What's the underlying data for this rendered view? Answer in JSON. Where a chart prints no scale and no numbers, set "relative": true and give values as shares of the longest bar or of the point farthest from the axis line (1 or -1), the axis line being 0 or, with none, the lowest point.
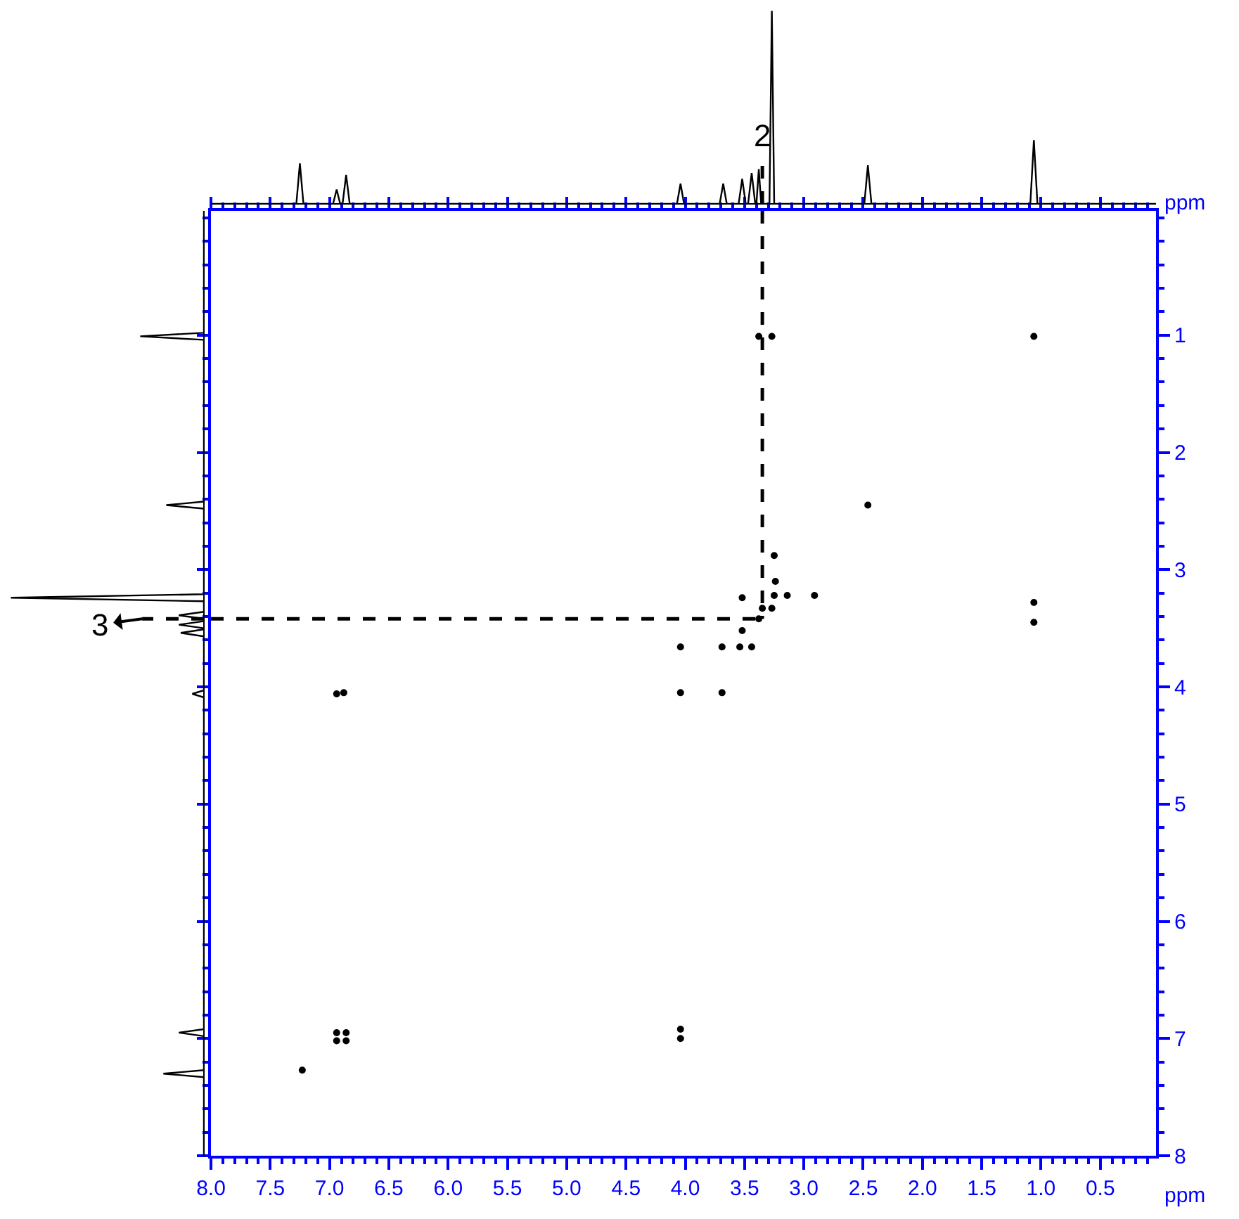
{
  "chart_data": [
    {
      "type": "line",
      "relative": true,
      "tick_labels": false,
      "xlim": [
        8.0,
        0.03
      ],
      "line_style": "solid",
      "marker": "none",
      "series": [
        {
          "color": "#000000",
          "x": [
            8.0,
            7.28,
            7.25,
            7.22,
            6.97,
            6.94,
            6.91,
            6.89,
            6.86,
            6.83,
            4.07,
            4.04,
            4.01,
            3.71,
            3.68,
            3.65,
            3.55,
            3.52,
            3.49,
            3.47,
            3.44,
            3.41,
            3.4,
            3.38,
            3.36,
            3.29,
            3.27,
            3.25,
            2.49,
            2.46,
            2.43,
            1.09,
            1.06,
            1.03,
            0.03
          ],
          "values": [
            0,
            0,
            0.21,
            0,
            0,
            0.075,
            0,
            0,
            0.15,
            0,
            0,
            0.105,
            0,
            0,
            0.105,
            0,
            0,
            0.13,
            0,
            0,
            0.16,
            0,
            0,
            0.18,
            0,
            0,
            1.0,
            0,
            0,
            0.2,
            0,
            0,
            0.33,
            0,
            0
          ]
        },
        {
          "color": "#000000",
          "line_style": "dashed",
          "x": [
            3.35,
            3.35
          ],
          "values": [
            0,
            0.22
          ]
        }
      ],
      "annotations": [
        {
          "text": "2",
          "x": 3.35,
          "y": 0.25
        }
      ]
    },
    {
      "type": "line",
      "relative": true,
      "tick_labels": false,
      "orientation": "horizontal",
      "ylim": [
        8,
        -0.06
      ],
      "line_style": "solid",
      "marker": "none",
      "series": [
        {
          "color": "#000000",
          "x": [
            -0.06,
            0.98,
            1.01,
            1.04,
            2.42,
            2.45,
            2.48,
            3.21,
            3.24,
            3.27,
            3.36,
            3.39,
            3.42,
            3.44,
            3.47,
            3.5,
            3.51,
            3.54,
            3.57,
            4.03,
            4.06,
            4.09,
            6.92,
            6.95,
            6.98,
            7.27,
            7.3,
            7.33,
            8
          ],
          "values": [
            0,
            0,
            -0.33,
            0,
            0,
            -0.195,
            0,
            0,
            -1.0,
            0,
            0,
            -0.13,
            0,
            0,
            -0.13,
            0,
            0,
            -0.12,
            0,
            0,
            -0.06,
            0,
            0,
            -0.13,
            0,
            0,
            -0.21,
            0,
            0
          ]
        },
        {
          "color": "#000000",
          "line_style": "dashed",
          "x": [
            3.42,
            3.42
          ],
          "values": [
            0,
            -0.32
          ]
        }
      ],
      "annotations": [
        "3"
      ]
    },
    {
      "type": "scatter",
      "xlabel": "ppm",
      "ylabel": "ppm",
      "xlim": [
        8.0,
        0.03
      ],
      "ylim": [
        8,
        -0.06
      ],
      "marker": "circle",
      "xticks": [
        {
          "value": 8.0,
          "label": "8.0"
        },
        {
          "value": 7.5,
          "label": "7.5"
        },
        {
          "value": 7.0,
          "label": "7.0"
        },
        {
          "value": 6.5,
          "label": "6.5"
        },
        {
          "value": 6.0,
          "label": "6.0"
        },
        {
          "value": 5.5,
          "label": "5.5"
        },
        {
          "value": 5.0,
          "label": "5.0"
        },
        {
          "value": 4.5,
          "label": "4.5"
        },
        {
          "value": 4.0,
          "label": "4.0"
        },
        {
          "value": 3.5,
          "label": "3.5"
        },
        {
          "value": 3.0,
          "label": "3.0"
        },
        {
          "value": 2.5,
          "label": "2.5"
        },
        {
          "value": 2.0,
          "label": "2.0"
        },
        {
          "value": 1.5,
          "label": "1.5"
        },
        {
          "value": 1.0,
          "label": "1.0"
        },
        {
          "value": 0.5,
          "label": "0.5"
        }
      ],
      "yticks": [
        1,
        2,
        3,
        4,
        5,
        6,
        7,
        8
      ],
      "series": [
        {
          "color": "#000000",
          "x": [
            1.06,
            3.38,
            3.27,
            2.46,
            1.06,
            1.06,
            3.25,
            2.91,
            3.52,
            3.38,
            3.35,
            3.27,
            3.14,
            3.25,
            3.24,
            3.52,
            4.04,
            3.69,
            3.54,
            3.44,
            4.04,
            3.69,
            6.88,
            6.94,
            7.23,
            6.94,
            6.86,
            6.94,
            6.86,
            4.04,
            4.04
          ],
          "values": [
            1.01,
            1.01,
            1.01,
            2.45,
            3.28,
            3.45,
            2.88,
            3.22,
            3.24,
            3.42,
            3.33,
            3.33,
            3.22,
            3.22,
            3.1,
            3.52,
            3.66,
            3.66,
            3.66,
            3.66,
            4.05,
            4.05,
            4.05,
            4.06,
            7.27,
            6.95,
            6.95,
            7.02,
            7.02,
            6.92,
            7.0
          ]
        },
        {
          "type": "line",
          "color": "#000000",
          "line_style": "dashed",
          "marker": "none",
          "x": [
            3.35,
            3.35
          ],
          "values": [
            -0.06,
            3.42
          ]
        },
        {
          "type": "line",
          "color": "#000000",
          "line_style": "dashed",
          "marker": "none",
          "x": [
            8.0,
            3.35
          ],
          "values": [
            3.42,
            3.42
          ]
        }
      ]
    }
  ]
}
